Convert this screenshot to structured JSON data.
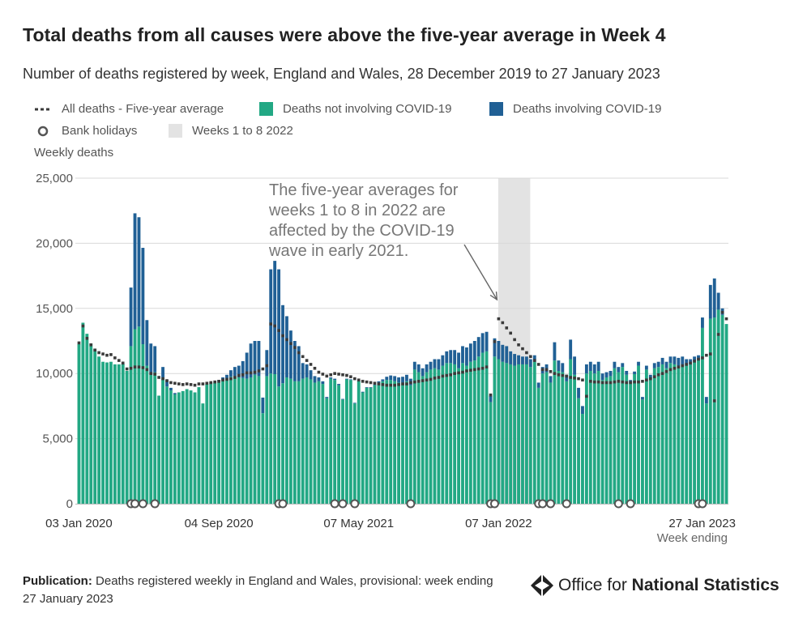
{
  "header": {
    "title": "Total deaths from all causes were above the five-year average in Week 4",
    "subtitle": "Number of deaths registered by week, England and Wales, 28 December 2019 to 27 January 2023"
  },
  "legend": {
    "average": "All deaths - Five-year average",
    "non_covid": "Deaths not involving COVID-19",
    "covid": "Deaths involving COVID-19",
    "holidays": "Bank holidays",
    "shade": "Weeks 1 to 8 2022"
  },
  "footer": {
    "label": "Publication:",
    "text": "Deaths registered weekly in England and Wales, provisional: week ending 27 January 2023"
  },
  "brand": {
    "prefix": "Office for ",
    "strong": "National Statistics",
    "logo_icon": "ons-logo-icon"
  },
  "colors": {
    "non_covid": "#22a884",
    "covid": "#206095",
    "average": "#3a3a3a",
    "shade": "#e3e3e3",
    "grid": "#d9d9d9"
  },
  "chart_data": {
    "type": "bar",
    "stacked": true,
    "ylabel": "Weekly deaths",
    "xlabel": "Week ending",
    "ylim": [
      0,
      25000
    ],
    "yticks": [
      0,
      5000,
      10000,
      15000,
      20000,
      25000
    ],
    "ytick_labels": [
      "0",
      "5,000",
      "10,000",
      "15,000",
      "20,000",
      "25,000"
    ],
    "xtick_labels": [
      {
        "label": "03 Jan 2020",
        "week": 0
      },
      {
        "label": "04 Sep 2020",
        "week": 35
      },
      {
        "label": "07 May 2021",
        "week": 70
      },
      {
        "label": "07 Jan 2022",
        "week": 105
      },
      {
        "label": "27 Jan 2023",
        "week": 160
      }
    ],
    "first_week_ending": "03 Jan 2020",
    "last_week_ending": "27 Jan 2023",
    "shaded_weeks": [
      105,
      112
    ],
    "annotation": {
      "text_lines": [
        "The five-year averages for",
        "weeks 1 to 8 in 2022 are",
        "affected by the COVID-19",
        "wave in early 2021."
      ],
      "points_to_week": 105
    },
    "bank_holiday_weeks": [
      13,
      14,
      16,
      19,
      50,
      51,
      64,
      66,
      69,
      83,
      103,
      104,
      115,
      116,
      118,
      122,
      135,
      138,
      155,
      156
    ],
    "series": [
      {
        "name": "Deaths not involving COVID-19",
        "values": [
          12250,
          13900,
          13050,
          12300,
          11900,
          11300,
          10900,
          10850,
          10900,
          10700,
          10700,
          10750,
          10200,
          12100,
          13400,
          13600,
          12250,
          10600,
          9900,
          10100,
          8300,
          9700,
          9000,
          8700,
          8400,
          8550,
          8650,
          8800,
          8700,
          8550,
          8950,
          7700,
          9200,
          9300,
          9300,
          9400,
          9500,
          9600,
          9750,
          9800,
          9700,
          9650,
          9600,
          9700,
          9900,
          9800,
          6950,
          9800,
          10000,
          9950,
          9000,
          9250,
          9700,
          9600,
          9400,
          9400,
          9600,
          9700,
          9550,
          9300,
          9400,
          9200,
          8100,
          9600,
          9500,
          9100,
          8000,
          9550,
          9500,
          7700,
          9400,
          8550,
          8900,
          8900,
          9100,
          9300,
          9400,
          9500,
          9500,
          9400,
          9300,
          9300,
          9400,
          9100,
          10300,
          10100,
          9800,
          10100,
          10300,
          10400,
          10300,
          10600,
          10800,
          10800,
          10700,
          10400,
          10800,
          10600,
          10900,
          11000,
          11300,
          11600,
          11700,
          7800,
          11300,
          11100,
          10900,
          10800,
          10700,
          10600,
          10700,
          10700,
          10700,
          10500,
          10900,
          8900,
          10000,
          10100,
          9300,
          11000,
          10200,
          10100,
          9400,
          11100,
          9900,
          8100,
          6900,
          10000,
          10200,
          10000,
          10200,
          9500,
          9700,
          9800,
          10400,
          10100,
          10500,
          9900,
          9300,
          9950,
          10600,
          8000,
          10300,
          9600,
          10400,
          10500,
          10700,
          10400,
          10800,
          10700,
          10600,
          10700,
          10600,
          10700,
          10900,
          11100,
          13500,
          7700,
          14200,
          14300,
          14900,
          14500,
          13800
        ]
      },
      {
        "name": "Deaths involving COVID-19",
        "values": [
          0,
          0,
          0,
          0,
          0,
          0,
          0,
          0,
          0,
          0,
          0,
          0,
          0,
          4500,
          8900,
          8400,
          7400,
          3500,
          2400,
          2000,
          0,
          800,
          500,
          200,
          100,
          0,
          0,
          0,
          0,
          0,
          0,
          0,
          0,
          0,
          0,
          100,
          200,
          300,
          500,
          700,
          900,
          1300,
          2000,
          2600,
          2600,
          2700,
          1200,
          2000,
          8000,
          8700,
          9000,
          6000,
          4700,
          3700,
          3100,
          2700,
          1200,
          1000,
          700,
          500,
          300,
          200,
          100,
          100,
          100,
          100,
          50,
          50,
          50,
          50,
          50,
          50,
          50,
          50,
          50,
          100,
          150,
          250,
          350,
          400,
          400,
          450,
          500,
          500,
          600,
          600,
          600,
          600,
          600,
          700,
          800,
          800,
          900,
          1000,
          1100,
          1200,
          1300,
          1400,
          1400,
          1500,
          1500,
          1500,
          1500,
          500,
          1400,
          1400,
          1300,
          1300,
          1000,
          900,
          700,
          600,
          600,
          600,
          500,
          400,
          500,
          600,
          500,
          1400,
          800,
          700,
          500,
          1500,
          1400,
          800,
          600,
          700,
          700,
          700,
          700,
          500,
          400,
          400,
          500,
          400,
          300,
          300,
          200,
          200,
          300,
          200,
          300,
          300,
          400,
          400,
          500,
          500,
          500,
          600,
          600,
          600,
          500,
          400,
          400,
          300,
          800,
          500,
          2600,
          3000,
          1300,
          500
        ]
      },
      {
        "name": "All deaths - Five-year average",
        "type": "line",
        "values": [
          12350,
          13650,
          12700,
          12200,
          11800,
          11600,
          11500,
          11400,
          11450,
          11200,
          11000,
          10800,
          10350,
          10400,
          10500,
          10500,
          10450,
          10300,
          10000,
          9950,
          9700,
          9600,
          9450,
          9300,
          9250,
          9200,
          9150,
          9200,
          9150,
          9100,
          9200,
          9200,
          9250,
          9300,
          9350,
          9400,
          9500,
          9550,
          9600,
          9700,
          9850,
          9900,
          10050,
          10050,
          10100,
          10200,
          10350,
          10600,
          13800,
          13650,
          13300,
          12900,
          12600,
          12300,
          12000,
          11600,
          11300,
          11000,
          10700,
          10400,
          10100,
          9950,
          9800,
          9900,
          10000,
          9950,
          9900,
          9850,
          9750,
          9600,
          9500,
          9400,
          9350,
          9300,
          9250,
          9200,
          9150,
          9100,
          9100,
          9100,
          9150,
          9200,
          9200,
          9300,
          9350,
          9400,
          9450,
          9500,
          9550,
          9650,
          9700,
          9800,
          9850,
          9900,
          10000,
          10050,
          10100,
          10200,
          10250,
          10300,
          10350,
          10400,
          10500,
          8350,
          12450,
          14200,
          13900,
          13500,
          13100,
          12600,
          12200,
          11900,
          11600,
          11300,
          11000,
          10700,
          10300,
          10300,
          10150,
          10000,
          9900,
          9850,
          9800,
          9700,
          9650,
          9600,
          9500,
          8250,
          9400,
          9350,
          9350,
          9300,
          9300,
          9300,
          9350,
          9400,
          9350,
          9300,
          9300,
          9350,
          9350,
          9400,
          9500,
          9600,
          9750,
          9900,
          10000,
          10150,
          10300,
          10400,
          10500,
          10600,
          10700,
          10800,
          10950,
          11100,
          11200,
          11400,
          11500,
          7900,
          13000,
          14700,
          14200,
          14000
        ]
      }
    ]
  }
}
